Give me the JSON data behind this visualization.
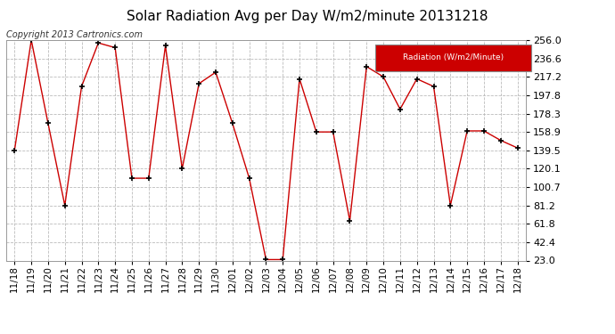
{
  "title": "Solar Radiation Avg per Day W/m2/minute 20131218",
  "copyright_text": "Copyright 2013 Cartronics.com",
  "legend_label": "Radiation (W/m2/Minute)",
  "dates": [
    "11/18",
    "11/19",
    "11/20",
    "11/21",
    "11/22",
    "11/23",
    "11/24",
    "11/25",
    "11/26",
    "11/27",
    "11/28",
    "11/29",
    "11/30",
    "12/01",
    "12/02",
    "12/03",
    "12/04",
    "12/05",
    "12/06",
    "12/07",
    "12/08",
    "12/09",
    "12/10",
    "12/11",
    "12/12",
    "12/13",
    "12/14",
    "12/15",
    "12/16",
    "12/17",
    "12/18"
  ],
  "values": [
    139.5,
    256.0,
    168.0,
    81.2,
    207.0,
    253.0,
    248.0,
    110.0,
    110.0,
    250.0,
    120.0,
    210.0,
    222.0,
    168.0,
    110.0,
    24.0,
    24.0,
    215.0,
    158.9,
    158.9,
    65.0,
    228.0,
    217.2,
    183.0,
    215.0,
    207.0,
    81.2,
    160.0,
    160.0,
    150.0,
    142.0
  ],
  "yticks": [
    23.0,
    42.4,
    61.8,
    81.2,
    100.7,
    120.1,
    139.5,
    158.9,
    178.3,
    197.8,
    217.2,
    236.6,
    256.0
  ],
  "ymin": 23.0,
  "ymax": 256.0,
  "line_color": "#cc0000",
  "marker_color": "#000000",
  "bg_color": "#ffffff",
  "grid_color": "#bbbbbb",
  "legend_bg": "#cc0000",
  "legend_text_color": "#ffffff",
  "title_fontsize": 11,
  "copyright_fontsize": 7,
  "tick_fontsize": 7.5,
  "ytick_fontsize": 8
}
